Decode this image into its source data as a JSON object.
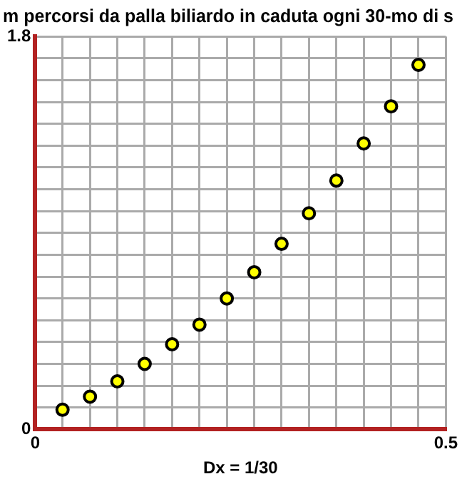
{
  "chart_data": {
    "type": "scatter",
    "title": "m percorsi da palla biliardo in caduta ogni 30-mo di s",
    "xlabel": "Dx = 1/30",
    "x": [
      0.0333,
      0.0667,
      0.1,
      0.1333,
      0.1667,
      0.2,
      0.2333,
      0.2667,
      0.3,
      0.3333,
      0.3667,
      0.4,
      0.4333,
      0.4667
    ],
    "series": [
      {
        "color": "#ffff00",
        "values": [
          0.09,
          0.15,
          0.22,
          0.3,
          0.39,
          0.48,
          0.6,
          0.72,
          0.85,
          0.99,
          1.14,
          1.31,
          1.48,
          1.67
        ]
      }
    ],
    "xlim": [
      0,
      0.5
    ],
    "ylim": [
      0,
      1.8
    ],
    "xticks": [
      0,
      {
        "value": 0.0333,
        "label": null
      },
      {
        "value": 0.0667,
        "label": null
      },
      {
        "value": 0.1,
        "label": null
      },
      {
        "value": 0.1333,
        "label": null
      },
      {
        "value": 0.1667,
        "label": null
      },
      {
        "value": 0.2,
        "label": null
      },
      {
        "value": 0.2333,
        "label": null
      },
      {
        "value": 0.2667,
        "label": null
      },
      {
        "value": 0.3,
        "label": null
      },
      {
        "value": 0.3333,
        "label": null
      },
      {
        "value": 0.3667,
        "label": null
      },
      {
        "value": 0.4,
        "label": null
      },
      {
        "value": 0.4333,
        "label": null
      },
      {
        "value": 0.4667,
        "label": null
      },
      0.5
    ],
    "yticks": [
      0,
      {
        "value": 0.1,
        "label": null
      },
      {
        "value": 0.2,
        "label": null
      },
      {
        "value": 0.3,
        "label": null
      },
      {
        "value": 0.4,
        "label": null
      },
      {
        "value": 0.5,
        "label": null
      },
      {
        "value": 0.6,
        "label": null
      },
      {
        "value": 0.7,
        "label": null
      },
      {
        "value": 0.8,
        "label": null
      },
      {
        "value": 0.9,
        "label": null
      },
      {
        "value": 1.0,
        "label": null
      },
      {
        "value": 1.1,
        "label": null
      },
      {
        "value": 1.2,
        "label": null
      },
      {
        "value": 1.3,
        "label": null
      },
      {
        "value": 1.4,
        "label": null
      },
      {
        "value": 1.5,
        "label": null
      },
      {
        "value": 1.6,
        "label": null
      },
      {
        "value": 1.7,
        "label": null
      },
      1.8
    ],
    "grid": true,
    "marker": "circle",
    "legend": false
  }
}
